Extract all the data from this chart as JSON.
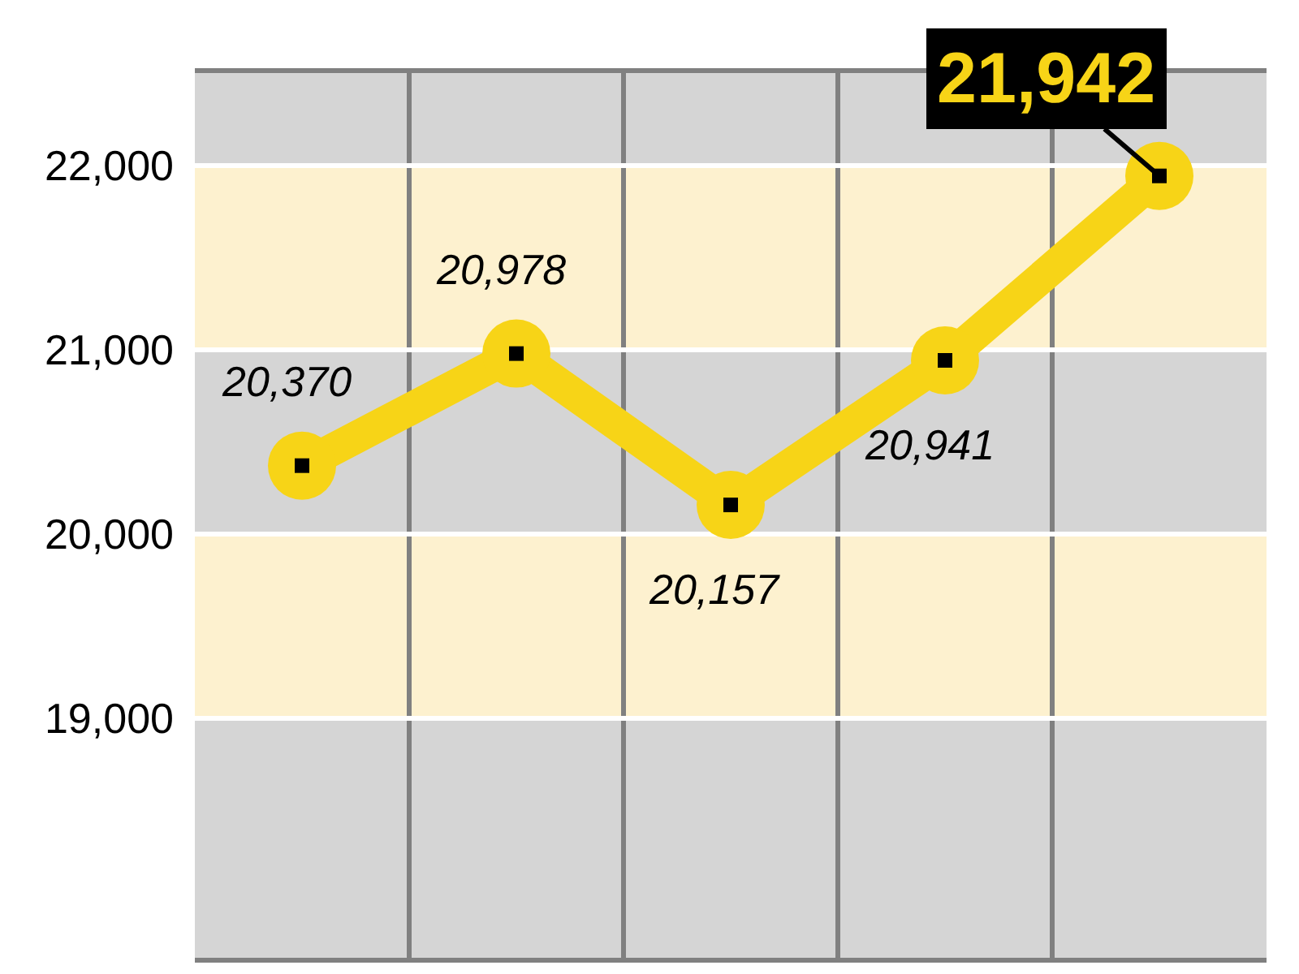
{
  "chart_data": {
    "type": "line",
    "categories": [
      null,
      null,
      null,
      null,
      null
    ],
    "series": [
      {
        "color": "#f7d417",
        "values": [
          20370,
          20978,
          20157,
          20941,
          21942
        ],
        "value_labels": [
          "20,370",
          "20,978",
          "20,157",
          "20,941",
          "21,942"
        ]
      }
    ],
    "ylim": [
      17700,
      22500
    ],
    "yticks": [
      {
        "value": 19000,
        "label": "19,000"
      },
      {
        "value": 20000,
        "label": "20,000"
      },
      {
        "value": 21000,
        "label": "21,000"
      },
      {
        "value": 22000,
        "label": "22,000"
      }
    ],
    "bands": [
      {
        "axis": "y",
        "from": 19000,
        "to": 20000,
        "color": "#fdf1cf"
      },
      {
        "axis": "y",
        "from": 21000,
        "to": 22000,
        "color": "#fdf1cf"
      }
    ],
    "grid": true,
    "marker": "circle",
    "line_style": "solid"
  }
}
